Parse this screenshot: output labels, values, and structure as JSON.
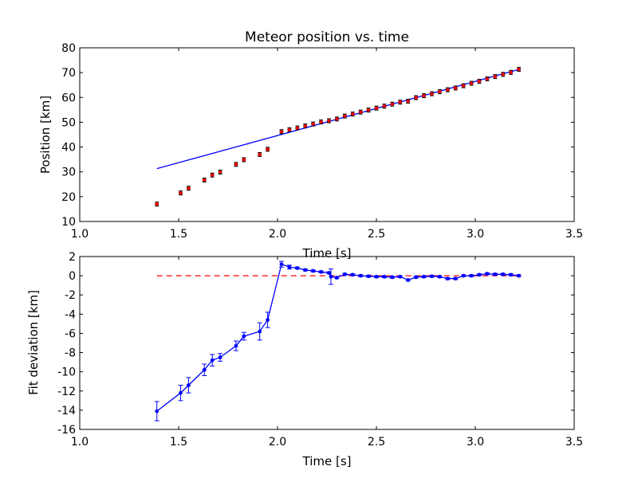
{
  "chart_data": [
    {
      "type": "scatter",
      "title": "Meteor position vs. time",
      "xlabel": "Time [s]",
      "ylabel": "Position [km]",
      "xlim": [
        1.0,
        3.5
      ],
      "ylim": [
        10,
        80
      ],
      "xticks": [
        1.0,
        1.5,
        2.0,
        2.5,
        3.0,
        3.5
      ],
      "yticks": [
        10,
        20,
        30,
        40,
        50,
        60,
        70,
        80
      ],
      "colors": {
        "points": "#ff0000",
        "fit": "#0000ff"
      },
      "grid": false,
      "series": [
        {
          "kind": "points-with-errorbars",
          "x": [
            1.39,
            1.51,
            1.55,
            1.63,
            1.67,
            1.71,
            1.79,
            1.83,
            1.91,
            1.95,
            2.02,
            2.06,
            2.1,
            2.14,
            2.18,
            2.22,
            2.26,
            2.3,
            2.34,
            2.38,
            2.42,
            2.46,
            2.5,
            2.54,
            2.58,
            2.62,
            2.66,
            2.7,
            2.74,
            2.78,
            2.82,
            2.86,
            2.9,
            2.94,
            2.98,
            3.02,
            3.06,
            3.1,
            3.14,
            3.18,
            3.22
          ],
          "y": [
            17.0,
            21.5,
            23.4,
            26.7,
            28.7,
            29.9,
            33.0,
            34.9,
            37.0,
            39.1,
            46.2,
            47.0,
            47.7,
            48.5,
            49.3,
            50.1,
            50.6,
            51.3,
            52.5,
            53.3,
            54.1,
            54.9,
            55.7,
            56.5,
            57.3,
            58.1,
            58.5,
            59.9,
            60.7,
            61.5,
            62.3,
            63.1,
            63.8,
            64.7,
            65.7,
            66.5,
            67.5,
            68.4,
            69.3,
            70.1,
            71.3
          ],
          "yerr": 0.8
        },
        {
          "kind": "fit-line",
          "x": [
            1.39,
            3.23
          ],
          "y": [
            31.3,
            71.5
          ]
        }
      ]
    },
    {
      "type": "line",
      "title": "",
      "xlabel": "Time [s]",
      "ylabel": "Fit deviation [km]",
      "xlim": [
        1.0,
        3.5
      ],
      "ylim": [
        -16,
        2
      ],
      "xticks": [
        1.0,
        1.5,
        2.0,
        2.5,
        3.0,
        3.5
      ],
      "yticks": [
        -16,
        -14,
        -12,
        -10,
        -8,
        -6,
        -4,
        -2,
        0,
        2
      ],
      "colors": {
        "residuals": "#0000ff",
        "zero": "#ff0000"
      },
      "grid": false,
      "reference_line": {
        "y": 0,
        "x": [
          1.39,
          3.23
        ],
        "style": "dashed"
      },
      "series": [
        {
          "kind": "line-with-errorbars",
          "x": [
            1.39,
            1.51,
            1.55,
            1.63,
            1.67,
            1.71,
            1.79,
            1.83,
            1.91,
            1.95,
            2.02,
            2.06,
            2.1,
            2.14,
            2.18,
            2.22,
            2.26,
            2.27,
            2.3,
            2.34,
            2.38,
            2.42,
            2.46,
            2.5,
            2.54,
            2.58,
            2.62,
            2.66,
            2.7,
            2.74,
            2.78,
            2.82,
            2.86,
            2.9,
            2.94,
            2.98,
            3.02,
            3.06,
            3.1,
            3.14,
            3.18,
            3.22
          ],
          "y": [
            -14.1,
            -12.2,
            -11.4,
            -9.8,
            -8.8,
            -8.5,
            -7.3,
            -6.3,
            -5.8,
            -4.6,
            1.2,
            0.9,
            0.8,
            0.6,
            0.5,
            0.4,
            0.3,
            -0.1,
            -0.2,
            0.15,
            0.1,
            0.0,
            -0.05,
            -0.1,
            -0.1,
            -0.15,
            -0.1,
            -0.45,
            -0.15,
            -0.1,
            -0.05,
            -0.1,
            -0.3,
            -0.3,
            0.0,
            0.0,
            0.1,
            0.2,
            0.15,
            0.15,
            0.1,
            0.0
          ],
          "yerr": [
            1.0,
            0.8,
            0.8,
            0.6,
            0.6,
            0.4,
            0.5,
            0.4,
            0.9,
            0.8,
            0.3,
            0.2,
            0.1,
            0.1,
            0.1,
            0.1,
            0.1,
            0.8,
            0.1,
            0.1,
            0.1,
            0.1,
            0.1,
            0.1,
            0.1,
            0.1,
            0.1,
            0.1,
            0.1,
            0.1,
            0.1,
            0.1,
            0.1,
            0.1,
            0.1,
            0.1,
            0.1,
            0.1,
            0.1,
            0.1,
            0.1,
            0.1
          ]
        }
      ]
    }
  ]
}
